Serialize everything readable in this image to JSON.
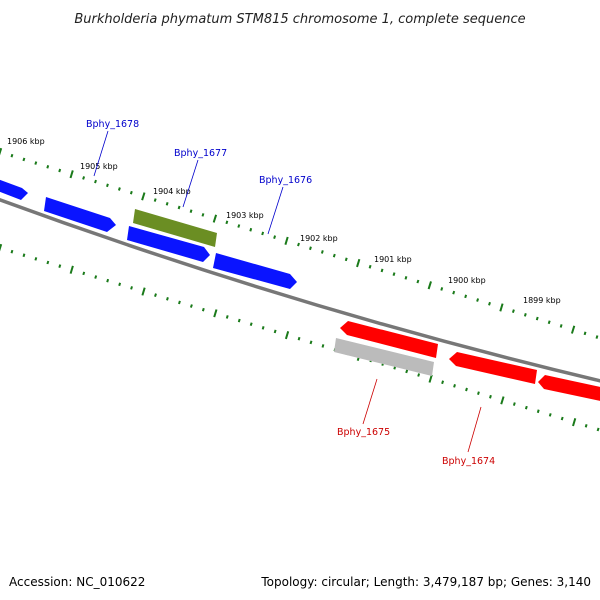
{
  "title": "Burkholderia phymatum STM815 chromosome 1, complete sequence",
  "footer": {
    "accession": "Accession: NC_010622",
    "summary": "Topology: circular; Length: 3,479,187 bp; Genes: 3,140"
  },
  "colors": {
    "forward_gene": "#0a14ff",
    "reverse_gene": "#ff0000",
    "highlight_gene": "#6b8e23",
    "pseudo_gene": "#bbbbbb",
    "backbone": "#777777",
    "tick": "#1a7a1a",
    "forward_label": "#0000cc",
    "reverse_label": "#cc0000"
  },
  "ticks": [
    "1906 kbp",
    "1905 kbp",
    "1904 kbp",
    "1903 kbp",
    "1902 kbp",
    "1901 kbp",
    "1900 kbp",
    "1899 kbp"
  ],
  "genes": [
    {
      "label": "Bphy_1678",
      "strand": "forward",
      "type": "cds"
    },
    {
      "label": "Bphy_1677",
      "strand": "forward",
      "type": "highlight"
    },
    {
      "label": "Bphy_1676",
      "strand": "forward",
      "type": "cds"
    },
    {
      "label": "Bphy_1675",
      "strand": "reverse",
      "type": "cds"
    },
    {
      "label": "Bphy_1674",
      "strand": "reverse",
      "type": "cds"
    }
  ]
}
